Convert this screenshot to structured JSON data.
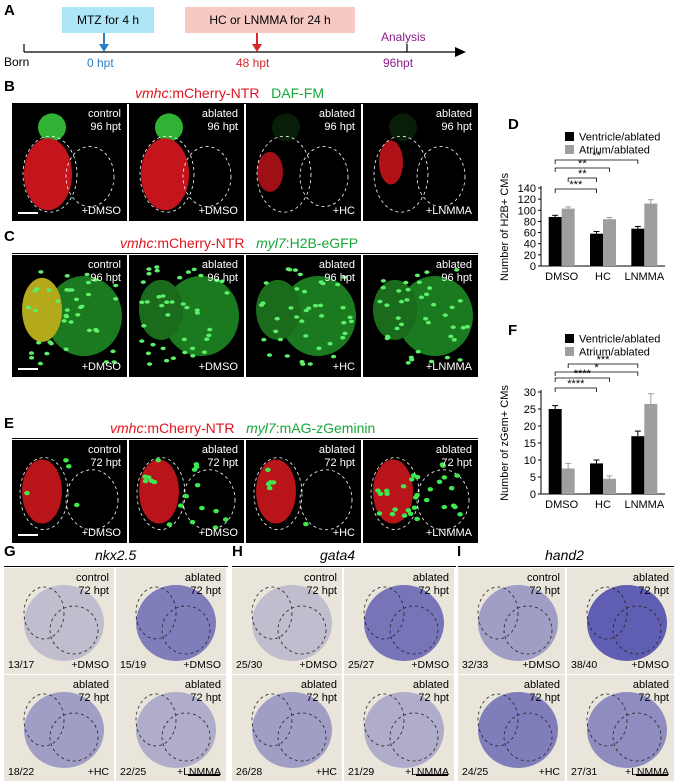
{
  "panels": {
    "A": {
      "label": "A",
      "born": "Born",
      "mtz_box": "MTZ for 4 h",
      "drug_box": "HC or LNMMA for 24 h",
      "analysis": "Analysis",
      "t0": "0 hpt",
      "t48": "48 hpt",
      "t96": "96hpt",
      "colors": {
        "mtz_box": "#aee6f8",
        "drug_box": "#f7c9c3",
        "arrow_mtz": "#2a7fc4",
        "arrow_drug": "#d9262b",
        "analysis": "#8a1c8a"
      }
    },
    "B": {
      "label": "B",
      "header_gene": "vmhc",
      "header_rest": ":mCherry-NTR",
      "header_green": "DAF-FM",
      "tiles": [
        {
          "top": "control",
          "time": "96 hpt",
          "bottom": "+DMSO"
        },
        {
          "top": "ablated",
          "time": "96 hpt",
          "bottom": "+DMSO"
        },
        {
          "top": "ablated",
          "time": "96 hpt",
          "bottom": "+HC"
        },
        {
          "top": "ablated",
          "time": "96 hpt",
          "bottom": "+LNMMA"
        }
      ]
    },
    "C": {
      "label": "C",
      "header_gene": "vmhc",
      "header_rest": ":mCherry-NTR",
      "header_green_gene": "myl7",
      "header_green_rest": ":H2B-eGFP",
      "tiles": [
        {
          "top": "control",
          "time": "96 hpt",
          "bottom": "+DMSO"
        },
        {
          "top": "ablated",
          "time": "96 hpt",
          "bottom": "+DMSO"
        },
        {
          "top": "ablated",
          "time": "96 hpt",
          "bottom": "+HC"
        },
        {
          "top": "ablated",
          "time": "96 hpt",
          "bottom": "+LNMMA"
        }
      ]
    },
    "E": {
      "label": "E",
      "header_gene": "vmhc",
      "header_rest": ":mCherry-NTR",
      "header_green_gene": "myl7",
      "header_green_rest": ":mAG-zGeminin",
      "tiles": [
        {
          "top": "control",
          "time": "72 hpt",
          "bottom": "+DMSO"
        },
        {
          "top": "ablated",
          "time": "72 hpt",
          "bottom": "+DMSO"
        },
        {
          "top": "ablated",
          "time": "72 hpt",
          "bottom": "+HC"
        },
        {
          "top": "ablated",
          "time": "72 hpt",
          "bottom": "+LNMMA"
        }
      ]
    },
    "D": {
      "label": "D"
    },
    "F": {
      "label": "F"
    },
    "G": {
      "label": "G",
      "gene": "nkx2.5",
      "tiles": [
        {
          "top": "control",
          "time": "72 hpt",
          "ratio": "13/17",
          "bottom": "+DMSO"
        },
        {
          "top": "ablated",
          "time": "72 hpt",
          "ratio": "15/19",
          "bottom": "+DMSO"
        },
        {
          "top": "ablated",
          "time": "72 hpt",
          "ratio": "18/22",
          "bottom": "+HC"
        },
        {
          "top": "ablated",
          "time": "72 hpt",
          "ratio": "22/25",
          "bottom": "+LNMMA"
        }
      ]
    },
    "H": {
      "label": "H",
      "gene": "gata4",
      "tiles": [
        {
          "top": "control",
          "time": "72 hpt",
          "ratio": "25/30",
          "bottom": "+DMSO"
        },
        {
          "top": "ablated",
          "time": "72 hpt",
          "ratio": "25/27",
          "bottom": "+DMSO"
        },
        {
          "top": "ablated",
          "time": "72 hpt",
          "ratio": "26/28",
          "bottom": "+HC"
        },
        {
          "top": "ablated",
          "time": "72 hpt",
          "ratio": "21/29",
          "bottom": "+LNMMA"
        }
      ]
    },
    "I": {
      "label": "I",
      "gene": "hand2",
      "tiles": [
        {
          "top": "control",
          "time": "72 hpt",
          "ratio": "32/33",
          "bottom": "+DMSO"
        },
        {
          "top": "ablated",
          "time": "72 hpt",
          "ratio": "38/40",
          "bottom": "+DMSO"
        },
        {
          "top": "ablated",
          "time": "72 hpt",
          "ratio": "24/25",
          "bottom": "+HC"
        },
        {
          "top": "ablated",
          "time": "72 hpt",
          "ratio": "27/31",
          "bottom": "+LNMMA"
        }
      ]
    }
  },
  "chart_data": [
    {
      "type": "bar",
      "panel": "D",
      "categories": [
        "DMSO",
        "HC",
        "LNMMA"
      ],
      "series": [
        {
          "name": "Ventricle/ablated",
          "values": [
            88,
            58,
            67
          ],
          "errors": [
            3,
            4,
            4
          ],
          "color": "#000000"
        },
        {
          "name": "Atrium/ablated",
          "values": [
            103,
            84,
            112
          ],
          "errors": [
            3,
            3,
            7
          ],
          "color": "#9e9e9e"
        }
      ],
      "ylabel": "Number of H2B+ CMs",
      "yticks": [
        0,
        20,
        40,
        60,
        80,
        100,
        120,
        140
      ],
      "ylim": [
        0,
        140
      ],
      "legend_position": "top",
      "significance": [
        "***",
        "**",
        "**",
        "**"
      ]
    },
    {
      "type": "bar",
      "panel": "F",
      "categories": [
        "DMSO",
        "HC",
        "LNMMA"
      ],
      "series": [
        {
          "name": "Ventricle/ablated",
          "values": [
            25,
            9,
            17
          ],
          "errors": [
            1,
            1,
            1.5
          ],
          "color": "#000000"
        },
        {
          "name": "Atrium/ablated",
          "values": [
            7.5,
            4.5,
            26.5
          ],
          "errors": [
            1.5,
            0.8,
            3
          ],
          "color": "#9e9e9e"
        }
      ],
      "ylabel": "Number of zGem+ CMs",
      "yticks": [
        0,
        5,
        10,
        15,
        20,
        25,
        30
      ],
      "ylim": [
        0,
        30
      ],
      "legend_position": "top",
      "significance": [
        "****",
        "****",
        "*",
        "***"
      ]
    }
  ]
}
